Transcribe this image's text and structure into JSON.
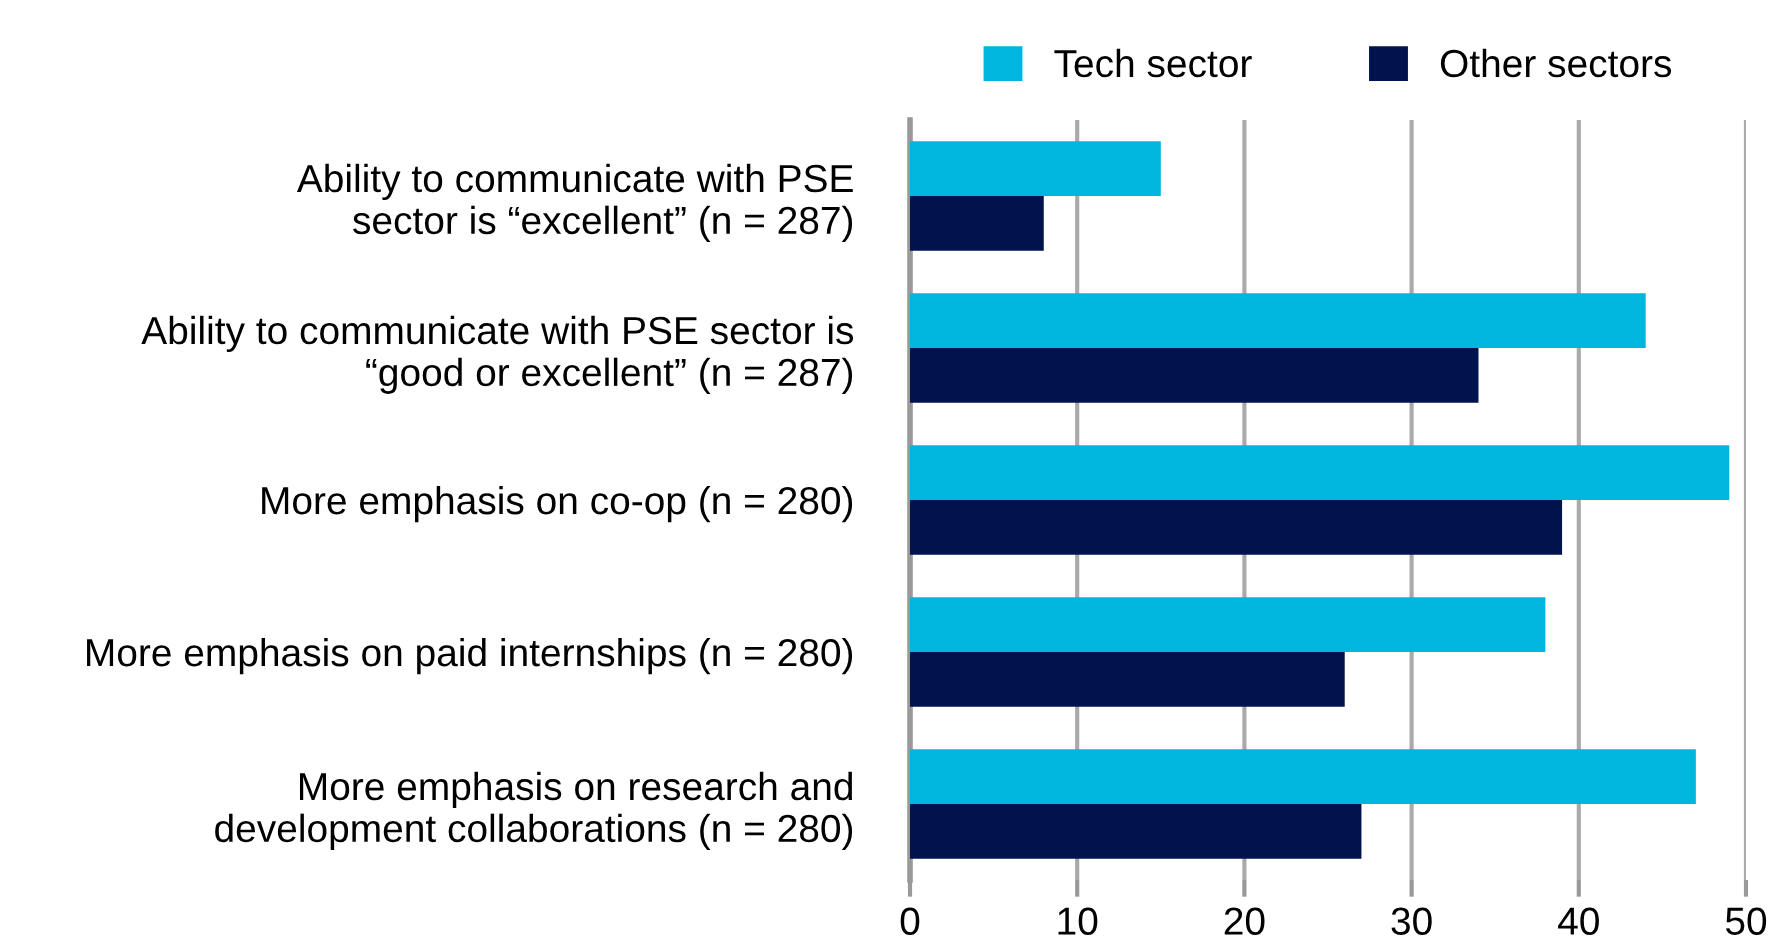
{
  "chart_data": {
    "type": "bar",
    "orientation": "horizontal",
    "categories": [
      "Ability to communicate with PSE\nsector is “excellent” (n = 287)",
      "Ability to communicate with PSE sector is\n“good or excellent” (n = 287)",
      "More emphasis on co-op (n = 280)",
      "More emphasis on paid internships (n = 280)",
      "More emphasis on research and\ndevelopment collaborations (n = 280)"
    ],
    "series": [
      {
        "name": "Tech sector",
        "color": "#00b5de",
        "values": [
          15,
          44,
          49,
          38,
          47
        ]
      },
      {
        "name": "Other sectors",
        "color": "#00134d",
        "values": [
          8,
          34,
          39,
          26,
          27
        ]
      }
    ],
    "xlim": [
      0,
      50
    ],
    "xticks": [
      0,
      10,
      20,
      30,
      40,
      50
    ],
    "grid": "x",
    "legend": "top"
  }
}
